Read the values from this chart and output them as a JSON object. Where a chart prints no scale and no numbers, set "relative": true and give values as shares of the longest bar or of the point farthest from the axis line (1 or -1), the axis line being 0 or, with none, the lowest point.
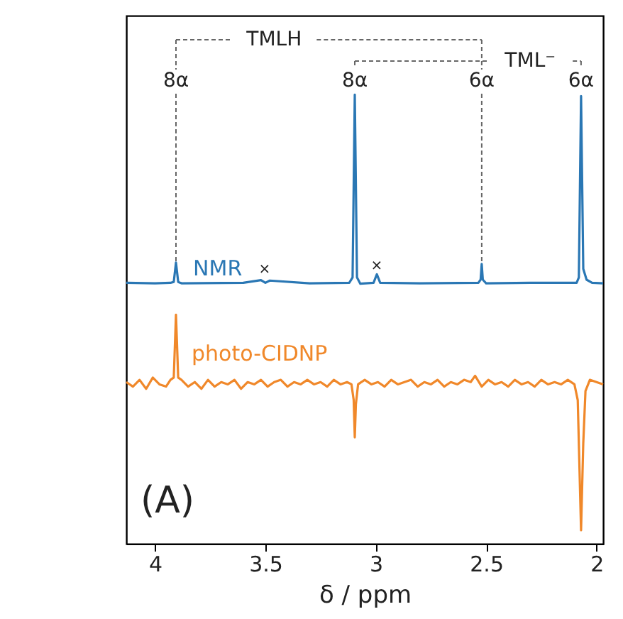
{
  "chart_data": {
    "type": "line",
    "relative": true,
    "xlabel": "δ / ppm",
    "xlim": [
      4.13,
      1.97
    ],
    "xticks": [
      4,
      3.5,
      3,
      2.5,
      2
    ],
    "tick_labels": "x",
    "line_style": "solid",
    "series": [
      {
        "name": "NMR",
        "color": "#2a77b4",
        "x": [
          4.13,
          4.0,
          3.93,
          3.915,
          3.905,
          3.895,
          3.88,
          3.6,
          3.52,
          3.5,
          3.48,
          3.3,
          3.12,
          3.105,
          3.095,
          3.085,
          3.07,
          3.01,
          2.995,
          2.98,
          2.8,
          2.535,
          2.525,
          2.52,
          2.515,
          2.5,
          2.3,
          2.09,
          2.08,
          2.07,
          2.06,
          2.045,
          2.02,
          1.97
        ],
        "values": [
          0.581,
          0.58,
          0.581,
          0.583,
          0.626,
          0.583,
          0.58,
          0.581,
          0.587,
          0.581,
          0.586,
          0.58,
          0.581,
          0.593,
          1,
          0.593,
          0.579,
          0.581,
          0.6,
          0.581,
          0.58,
          0.581,
          0.588,
          0.623,
          0.588,
          0.58,
          0.581,
          0.581,
          0.593,
          0.997,
          0.612,
          0.588,
          0.581,
          0.58
        ]
      },
      {
        "name": "photo-CIDNP",
        "color": "#f0882a",
        "x": [
          4.13,
          4.1,
          4.07,
          4.04,
          4.01,
          3.98,
          3.95,
          3.93,
          3.915,
          3.905,
          3.895,
          3.88,
          3.85,
          3.82,
          3.79,
          3.76,
          3.73,
          3.7,
          3.67,
          3.64,
          3.61,
          3.58,
          3.55,
          3.52,
          3.49,
          3.46,
          3.43,
          3.4,
          3.37,
          3.34,
          3.31,
          3.28,
          3.25,
          3.22,
          3.19,
          3.16,
          3.13,
          3.11,
          3.1,
          3.095,
          3.09,
          3.08,
          3.05,
          3.02,
          2.99,
          2.96,
          2.93,
          2.9,
          2.87,
          2.84,
          2.81,
          2.78,
          2.75,
          2.72,
          2.69,
          2.66,
          2.63,
          2.6,
          2.57,
          2.55,
          2.52,
          2.49,
          2.46,
          2.43,
          2.4,
          2.37,
          2.34,
          2.31,
          2.28,
          2.25,
          2.22,
          2.19,
          2.16,
          2.13,
          2.1,
          2.085,
          2.07,
          2.06,
          2.05,
          2.03,
          2.0,
          1.97
        ],
        "values": [
          0.36,
          0.35,
          0.365,
          0.345,
          0.37,
          0.355,
          0.35,
          0.365,
          0.37,
          0.51,
          0.37,
          0.365,
          0.35,
          0.36,
          0.345,
          0.365,
          0.35,
          0.36,
          0.355,
          0.365,
          0.345,
          0.36,
          0.355,
          0.365,
          0.35,
          0.36,
          0.365,
          0.35,
          0.36,
          0.355,
          0.365,
          0.355,
          0.36,
          0.35,
          0.365,
          0.355,
          0.36,
          0.355,
          0.32,
          0.237,
          0.311,
          0.355,
          0.365,
          0.355,
          0.36,
          0.35,
          0.365,
          0.355,
          0.36,
          0.365,
          0.35,
          0.36,
          0.355,
          0.365,
          0.35,
          0.36,
          0.355,
          0.365,
          0.36,
          0.374,
          0.35,
          0.365,
          0.355,
          0.36,
          0.35,
          0.365,
          0.355,
          0.36,
          0.35,
          0.365,
          0.355,
          0.36,
          0.355,
          0.365,
          0.355,
          0.32,
          0.03,
          0.224,
          0.34,
          0.365,
          0.36,
          0.355
        ]
      }
    ],
    "annotations": [
      "TMLH",
      "TML⁻",
      "8α",
      "8α",
      "6α",
      "6α",
      "×",
      "×",
      "(A)"
    ]
  }
}
